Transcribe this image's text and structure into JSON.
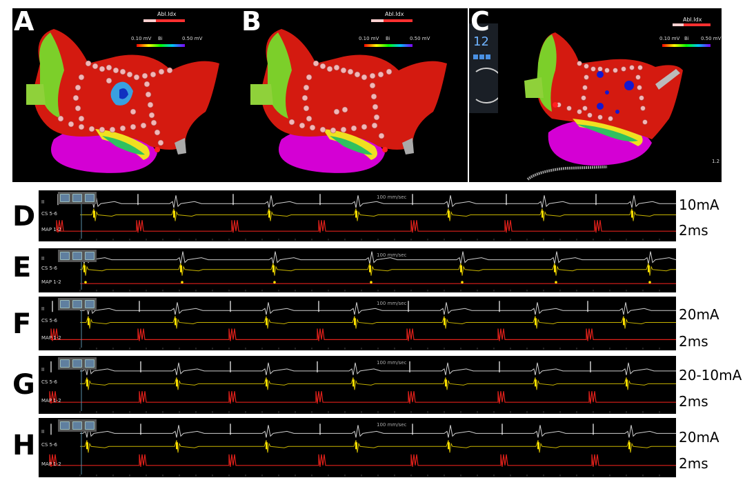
{
  "panels": [
    {
      "letter": "A",
      "legend_title": "Abl.Idx",
      "scale_label": "Bi",
      "scale_min": "0.10 mV",
      "scale_max": "0.50 mV"
    },
    {
      "letter": "B",
      "legend_title": "Abl.Idx",
      "scale_label": "Bi",
      "scale_min": "0.10 mV",
      "scale_max": "0.50 mV"
    },
    {
      "letter": "C",
      "legend_title": "Abl.Idx",
      "scale_label": "Bi",
      "scale_min": "0.10 mV",
      "scale_max": "0.50 mV",
      "overlay_number": "12",
      "corner_value": "1.2"
    }
  ],
  "traces": [
    {
      "letter": "D",
      "speed": "100 mm/sec",
      "channels": [
        "II",
        "CS 5-6",
        "MAP 1-2"
      ],
      "current": "10mA",
      "duration": "2ms"
    },
    {
      "letter": "E",
      "speed": "100 mm/sec",
      "channels": [
        "II",
        "CS 5-6",
        "MAP 1-2"
      ],
      "current": "",
      "duration": ""
    },
    {
      "letter": "F",
      "speed": "100 mm/sec",
      "channels": [
        "II",
        "CS 5-6",
        "MAP 1-2"
      ],
      "current": "20mA",
      "duration": "2ms"
    },
    {
      "letter": "G",
      "speed": "100 mm/sec",
      "channels": [
        "II",
        "CS 5-6",
        "MAP 1-2"
      ],
      "current": "20-10mA",
      "duration": "2ms"
    },
    {
      "letter": "H",
      "speed": "100 mm/sec",
      "channels": [
        "II",
        "CS 5-6",
        "MAP 1-2"
      ],
      "current": "20mA",
      "duration": "2ms"
    }
  ],
  "colors": {
    "ecg": "#d0d0d0",
    "cs": "#c8b400",
    "map": "#e0201a",
    "red_tissue": "#d41a10",
    "magenta": "#d400d4"
  }
}
